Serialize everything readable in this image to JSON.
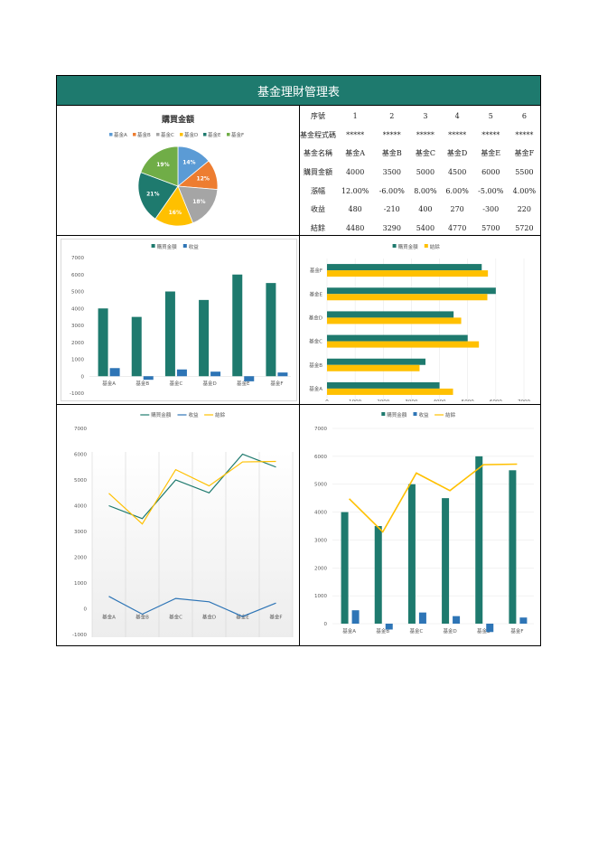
{
  "sheet_title": "基金理財管理表",
  "colors": {
    "teal": "#1e7a6e",
    "blue": "#2e75b6",
    "gold": "#ffc000",
    "pieA": "#5b9bd5",
    "pieB": "#ed7d31",
    "pieC": "#a5a5a5",
    "pieD": "#ffc000",
    "pieE": "#1e7a6e",
    "pieF": "#70ad47"
  },
  "table": {
    "rows": [
      {
        "header": "序號",
        "cells": [
          "1",
          "2",
          "3",
          "4",
          "5",
          "6"
        ]
      },
      {
        "header": "基金程式碼",
        "cells": [
          "*****",
          "*****",
          "*****",
          "*****",
          "*****",
          "*****"
        ]
      },
      {
        "header": "基金名稱",
        "cells": [
          "基金A",
          "基金B",
          "基金C",
          "基金D",
          "基金E",
          "基金F"
        ]
      },
      {
        "header": "購買金額",
        "cells": [
          "4000",
          "3500",
          "5000",
          "4500",
          "6000",
          "5500"
        ]
      },
      {
        "header": "漲幅",
        "cells": [
          "12.00%",
          "-6.00%",
          "8.00%",
          "6.00%",
          "-5.00%",
          "4.00%"
        ]
      },
      {
        "header": "收益",
        "cells": [
          "480",
          "-210",
          "400",
          "270",
          "-300",
          "220"
        ]
      },
      {
        "header": "結餘",
        "cells": [
          "4480",
          "3290",
          "5400",
          "4770",
          "5700",
          "5720"
        ]
      }
    ]
  },
  "chart_data": [
    {
      "type": "pie",
      "title": "購買金額",
      "categories": [
        "基金A",
        "基金B",
        "基金C",
        "基金D",
        "基金E",
        "基金F"
      ],
      "values": [
        4000,
        3500,
        5000,
        4500,
        6000,
        5500
      ],
      "data_labels": [
        "14%",
        "12%",
        "18%",
        "16%",
        "21%",
        "19%"
      ],
      "legend": "top"
    },
    {
      "type": "bar",
      "categories": [
        "基金A",
        "基金B",
        "基金C",
        "基金D",
        "基金E",
        "基金F"
      ],
      "series": [
        {
          "name": "購買金額",
          "values": [
            4000,
            3500,
            5000,
            4500,
            6000,
            5500
          ]
        },
        {
          "name": "收益",
          "values": [
            480,
            -210,
            400,
            270,
            -300,
            220
          ]
        }
      ],
      "ylim": [
        -1000,
        7000
      ],
      "yticks": [
        "7000",
        "6000",
        "5000",
        "4000",
        "3000",
        "2000",
        "1000",
        "0",
        "-1000"
      ],
      "legend": "top"
    },
    {
      "type": "bar",
      "orientation": "horizontal",
      "categories": [
        "基金A",
        "基金B",
        "基金C",
        "基金D",
        "基金E",
        "基金F"
      ],
      "series": [
        {
          "name": "購買金額",
          "values": [
            4000,
            3500,
            5000,
            4500,
            6000,
            5500
          ]
        },
        {
          "name": "結餘",
          "values": [
            4480,
            3290,
            5400,
            4770,
            5700,
            5720
          ]
        }
      ],
      "xlim": [
        0,
        7000
      ],
      "xticks": [
        "0",
        "1000",
        "2000",
        "3000",
        "4000",
        "5000",
        "6000",
        "7000"
      ],
      "legend": "top"
    },
    {
      "type": "line",
      "categories": [
        "基金A",
        "基金B",
        "基金C",
        "基金D",
        "基金E",
        "基金F"
      ],
      "series": [
        {
          "name": "購買金額",
          "values": [
            4000,
            3500,
            5000,
            4500,
            6000,
            5500
          ]
        },
        {
          "name": "收益",
          "values": [
            480,
            -210,
            400,
            270,
            -300,
            220
          ]
        },
        {
          "name": "結餘",
          "values": [
            4480,
            3290,
            5400,
            4770,
            5700,
            5720
          ]
        }
      ],
      "ylim": [
        -1000,
        7000
      ],
      "yticks": [
        "7000",
        "6000",
        "5000",
        "4000",
        "3000",
        "2000",
        "1000",
        "0",
        "-1000"
      ],
      "legend": "top"
    },
    {
      "type": "bar",
      "combo": "bar+line",
      "categories": [
        "基金A",
        "基金B",
        "基金C",
        "基金D",
        "基金E",
        "基金F"
      ],
      "series": [
        {
          "name": "購買金額",
          "values": [
            4000,
            3500,
            5000,
            4500,
            6000,
            5500
          ],
          "kind": "bar"
        },
        {
          "name": "收益",
          "values": [
            480,
            -210,
            400,
            270,
            -300,
            220
          ],
          "kind": "bar"
        },
        {
          "name": "結餘",
          "values": [
            4480,
            3290,
            5400,
            4770,
            5700,
            5720
          ],
          "kind": "line"
        }
      ],
      "ylim": [
        0,
        7000
      ],
      "yticks": [
        "7000",
        "6000",
        "5000",
        "4000",
        "3000",
        "2000",
        "1000",
        "0"
      ],
      "legend": "top"
    }
  ]
}
